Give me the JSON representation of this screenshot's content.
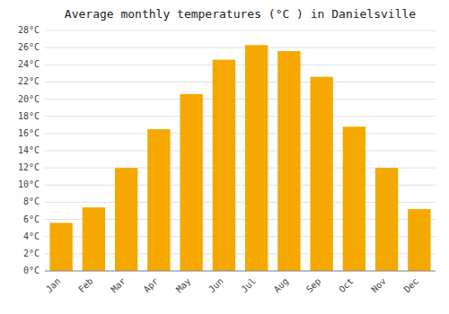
{
  "chart_data": {
    "type": "bar",
    "title": "Average monthly temperatures (°C ) in Danielsville",
    "categories": [
      "Jan",
      "Feb",
      "Mar",
      "Apr",
      "May",
      "Jun",
      "Jul",
      "Aug",
      "Sep",
      "Oct",
      "Nov",
      "Dec"
    ],
    "values": [
      5.6,
      7.4,
      12.0,
      16.5,
      20.6,
      24.6,
      26.3,
      25.6,
      22.6,
      16.8,
      12.0,
      7.2
    ],
    "color": "#F5A800",
    "ylim": [
      0,
      28
    ],
    "yticks": [
      {
        "value": 0,
        "label": "0°C"
      },
      {
        "value": 2,
        "label": "2°C"
      },
      {
        "value": 4,
        "label": "4°C"
      },
      {
        "value": 6,
        "label": "6°C"
      },
      {
        "value": 8,
        "label": "8°C"
      },
      {
        "value": 10,
        "label": "10°C"
      },
      {
        "value": 12,
        "label": "12°C"
      },
      {
        "value": 14,
        "label": "14°C"
      },
      {
        "value": 16,
        "label": "16°C"
      },
      {
        "value": 18,
        "label": "18°C"
      },
      {
        "value": 20,
        "label": "20°C"
      },
      {
        "value": 22,
        "label": "22°C"
      },
      {
        "value": 24,
        "label": "24°C"
      },
      {
        "value": 26,
        "label": "26°C"
      },
      {
        "value": 28,
        "label": "28°C"
      }
    ],
    "grid": true
  }
}
